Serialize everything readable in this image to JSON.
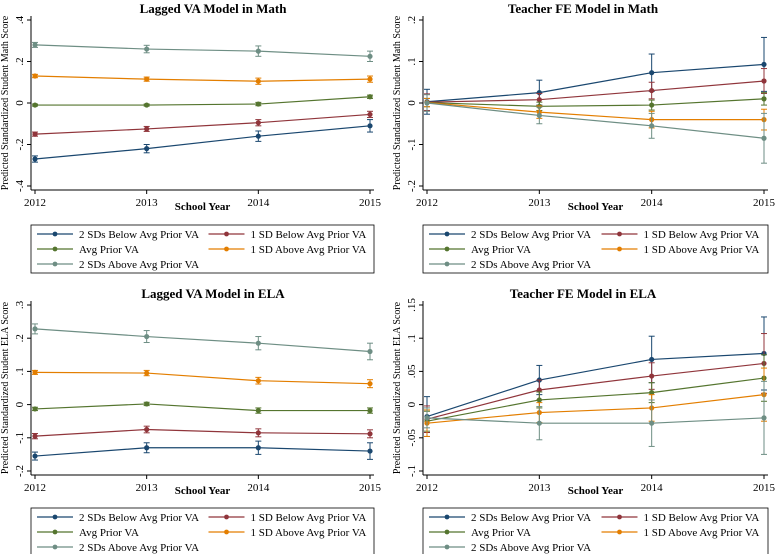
{
  "figure": {
    "xlabel": "School Year",
    "legend": [
      "2 SDs Below Avg Prior VA",
      "1 SD Below Avg Prior VA",
      "Avg Prior VA",
      "1 SD Above Avg Prior VA",
      "2 SDs Above Avg Prior VA"
    ],
    "colors": {
      "2 SDs Below Avg Prior VA": "#1a476f",
      "1 SD Below Avg Prior VA": "#90353b",
      "Avg Prior VA": "#55752f",
      "1 SD Above Avg Prior VA": "#e37e00",
      "2 SDs Above Avg Prior VA": "#6e8e84"
    }
  },
  "chart_data": [
    {
      "type": "line",
      "title": "Lagged VA Model in Math",
      "ylabel": "Predicted Standardized Student Math Score",
      "xlabel": "School Year",
      "x": [
        2012,
        2013,
        2014,
        2015
      ],
      "ylim": [
        -0.4,
        0.4
      ],
      "yticks": [
        -0.4,
        -0.2,
        0,
        0.2,
        0.4
      ],
      "ytick_labels": [
        "-.4",
        "-.2",
        "0",
        ".2",
        ".4"
      ],
      "series": [
        {
          "name": "2 SDs Below Avg Prior VA",
          "values": [
            -0.27,
            -0.22,
            -0.16,
            -0.11
          ],
          "ci": [
            0.015,
            0.02,
            0.025,
            0.03
          ]
        },
        {
          "name": "1 SD Below Avg Prior VA",
          "values": [
            -0.15,
            -0.125,
            -0.095,
            -0.055
          ],
          "ci": [
            0.01,
            0.012,
            0.015,
            0.015
          ]
        },
        {
          "name": "Avg Prior VA",
          "values": [
            -0.01,
            -0.01,
            -0.005,
            0.03
          ],
          "ci": [
            0.005,
            0.005,
            0.008,
            0.008
          ]
        },
        {
          "name": "1 SD Above Avg Prior VA",
          "values": [
            0.13,
            0.115,
            0.105,
            0.115
          ],
          "ci": [
            0.008,
            0.01,
            0.015,
            0.015
          ]
        },
        {
          "name": "2 SDs Above Avg Prior VA",
          "values": [
            0.28,
            0.26,
            0.25,
            0.225
          ],
          "ci": [
            0.012,
            0.018,
            0.025,
            0.025
          ]
        }
      ]
    },
    {
      "type": "line",
      "title": "Teacher FE Model in Math",
      "ylabel": "Predicted Standardized Student Math Score",
      "xlabel": "School Year",
      "x": [
        2012,
        2013,
        2014,
        2015
      ],
      "ylim": [
        -0.2,
        0.2
      ],
      "yticks": [
        -0.2,
        -0.1,
        0,
        0.1,
        0.2
      ],
      "ytick_labels": [
        "-.2",
        "-.1",
        "0",
        ".1",
        ".2"
      ],
      "series": [
        {
          "name": "2 SDs Below Avg Prior VA",
          "values": [
            0.003,
            0.025,
            0.073,
            0.093
          ],
          "ci": [
            0.03,
            0.03,
            0.045,
            0.065
          ]
        },
        {
          "name": "1 SD Below Avg Prior VA",
          "values": [
            0.002,
            0.008,
            0.03,
            0.053
          ],
          "ci": [
            0.02,
            0.015,
            0.02,
            0.03
          ]
        },
        {
          "name": "Avg Prior VA",
          "values": [
            0.001,
            -0.008,
            -0.005,
            0.01
          ],
          "ci": [
            0.01,
            0.01,
            0.012,
            0.015
          ]
        },
        {
          "name": "1 SD Above Avg Prior VA",
          "values": [
            0.001,
            -0.022,
            -0.04,
            -0.04
          ],
          "ci": [
            0.01,
            0.015,
            0.02,
            0.025
          ]
        },
        {
          "name": "2 SDs Above Avg Prior VA",
          "values": [
            0.0,
            -0.03,
            -0.055,
            -0.085
          ],
          "ci": [
            0.02,
            0.02,
            0.03,
            0.06
          ]
        }
      ]
    },
    {
      "type": "line",
      "title": "Lagged VA Model in ELA",
      "ylabel": "Predicted Standardized Student ELA Score",
      "xlabel": "School Year",
      "x": [
        2012,
        2013,
        2014,
        2015
      ],
      "ylim": [
        -0.2,
        0.3
      ],
      "yticks": [
        -0.2,
        -0.1,
        0,
        0.1,
        0.2,
        0.3
      ],
      "ytick_labels": [
        "-.2",
        "-.1",
        "0",
        ".1",
        ".2",
        ".3"
      ],
      "series": [
        {
          "name": "2 SDs Below Avg Prior VA",
          "values": [
            -0.155,
            -0.13,
            -0.13,
            -0.14
          ],
          "ci": [
            0.012,
            0.015,
            0.02,
            0.025
          ]
        },
        {
          "name": "1 SD Below Avg Prior VA",
          "values": [
            -0.095,
            -0.075,
            -0.085,
            -0.088
          ],
          "ci": [
            0.008,
            0.01,
            0.012,
            0.012
          ]
        },
        {
          "name": "Avg Prior VA",
          "values": [
            -0.013,
            0.002,
            -0.018,
            -0.018
          ],
          "ci": [
            0.005,
            0.005,
            0.008,
            0.008
          ]
        },
        {
          "name": "1 SD Above Avg Prior VA",
          "values": [
            0.097,
            0.095,
            0.072,
            0.063
          ],
          "ci": [
            0.006,
            0.008,
            0.01,
            0.012
          ]
        },
        {
          "name": "2 SDs Above Avg Prior VA",
          "values": [
            0.228,
            0.205,
            0.185,
            0.16
          ],
          "ci": [
            0.015,
            0.018,
            0.02,
            0.025
          ]
        }
      ]
    },
    {
      "type": "line",
      "title": "Teacher FE Model in ELA",
      "ylabel": "Predicted Standardized Student ELA Score",
      "xlabel": "School Year",
      "x": [
        2012,
        2013,
        2014,
        2015
      ],
      "ylim": [
        -0.1,
        0.15
      ],
      "yticks": [
        -0.1,
        -0.05,
        0,
        0.05,
        0.1,
        0.15
      ],
      "ytick_labels": [
        "-.1",
        "-.05",
        "0",
        ".05",
        ".1",
        ".15"
      ],
      "series": [
        {
          "name": "2 SDs Below Avg Prior VA",
          "values": [
            -0.018,
            0.037,
            0.068,
            0.077
          ],
          "ci": [
            0.03,
            0.022,
            0.035,
            0.055
          ]
        },
        {
          "name": "1 SD Below Avg Prior VA",
          "values": [
            -0.022,
            0.022,
            0.043,
            0.062
          ],
          "ci": [
            0.02,
            0.015,
            0.02,
            0.045
          ]
        },
        {
          "name": "Avg Prior VA",
          "values": [
            -0.025,
            0.007,
            0.018,
            0.04
          ],
          "ci": [
            0.015,
            0.012,
            0.015,
            0.035
          ]
        },
        {
          "name": "1 SD Above Avg Prior VA",
          "values": [
            -0.028,
            -0.012,
            -0.005,
            0.015
          ],
          "ci": [
            0.02,
            0.015,
            0.02,
            0.04
          ]
        },
        {
          "name": "2 SDs Above Avg Prior VA",
          "values": [
            -0.02,
            -0.028,
            -0.028,
            -0.02
          ],
          "ci": [
            0.015,
            0.025,
            0.035,
            0.055
          ]
        }
      ]
    }
  ]
}
